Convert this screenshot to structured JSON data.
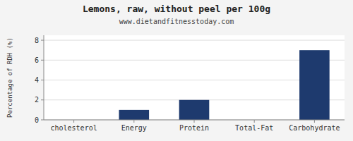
{
  "chart_data": {
    "type": "bar",
    "title": "Lemons, raw, without peel per 100g",
    "subtitle": "www.dietandfitnesstoday.com",
    "categories": [
      "cholesterol",
      "Energy",
      "Protein",
      "Total-Fat",
      "Carbohydrate"
    ],
    "values": [
      0,
      1,
      2,
      0,
      7
    ],
    "color": "#1e3a6e",
    "ylabel": "Percentage of RDH (%)",
    "ylim": [
      0,
      8.5
    ],
    "yticks": [
      0,
      2,
      4,
      6,
      8
    ],
    "grid": true
  }
}
